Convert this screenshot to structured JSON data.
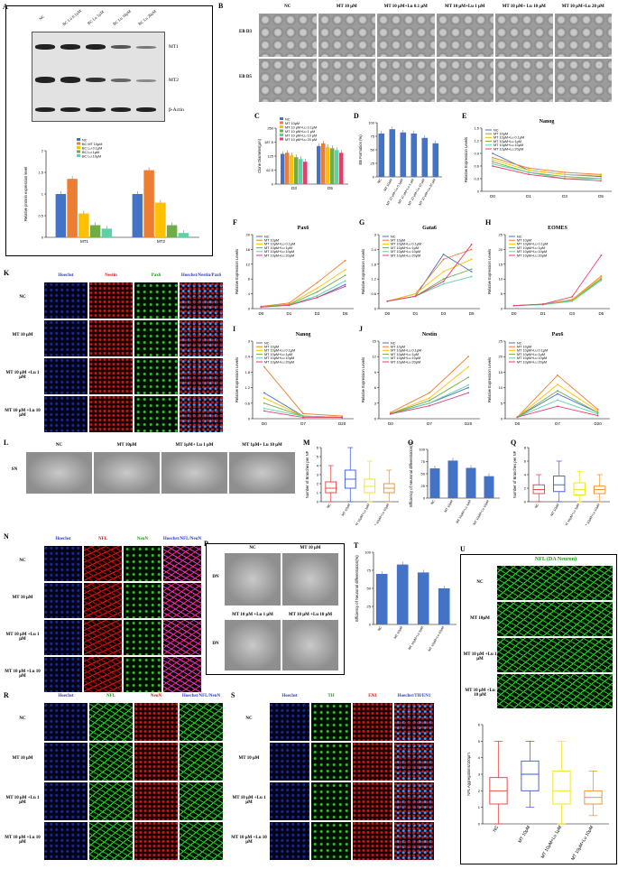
{
  "panels": {
    "A": {
      "letter": "A",
      "blot_lanes": [
        "NC",
        "BC Lu 0.1μM",
        "BC Lu 1μM",
        "BC Lu 10μM",
        "BC Lu 20μM"
      ],
      "blot_rows": [
        "MT1",
        "MT2",
        "β-Actin"
      ],
      "ylabel": "Relative protein expression level",
      "legend": [
        "NC",
        "BC MT 10μM",
        "BC Lu 0.1μM",
        "BC Lu 1μM",
        "BC Lu 10μM"
      ],
      "categories": [
        "MT1",
        "MT2"
      ]
    },
    "B": {
      "letter": "B",
      "cols": [
        "NC",
        "MT 10 μM",
        "MT 10 μM+Lu 0.1 μM",
        "MT 10 μM+Lu 1 μM",
        "MT 10 μM+ Lu 10 μM",
        "MT 10 μM+Lu 20 μM"
      ],
      "rows": [
        "EB D3",
        "EB D5"
      ]
    },
    "C": {
      "letter": "C",
      "ylabel": "Clone Diameter(μm)",
      "legend": [
        "NC",
        "MT 10μM",
        "MT 10 μM+Lu 0.1μM",
        "MT 10 μM+Lu 1 μM",
        "MT 10 μM+Lu 10 μM",
        "MT 10 μM+Lu 20 μM"
      ],
      "categories": [
        "D3",
        "D5"
      ]
    },
    "D": {
      "letter": "D",
      "ylabel": "EB Formation (%)",
      "categories": [
        "NC",
        "MT 10μM",
        "MT 10 μM+Lu 0.1μM",
        "MT 10 μM+Lu 1 μM",
        "MT 10 μM+Lu 10 μM",
        "MT 10 μM+Lu 20 μM"
      ]
    },
    "E": {
      "letter": "E",
      "title": "Nanog",
      "ylabel": "Relative Expression Levels",
      "legend": [
        "NC",
        "MT 10μM",
        "MT 10μM+Lu 0.1μM",
        "MT 10μM+Lu 1μM",
        "MT 10μM+Lu 10μM",
        "MT 10μM+Lu 20μM"
      ],
      "x": [
        "D0",
        "D1",
        "D3",
        "D5"
      ]
    },
    "F": {
      "letter": "F",
      "title": "Pax6",
      "ylabel": "Relative Expression Levels",
      "x": [
        "D0",
        "D1",
        "D3",
        "D5"
      ],
      "legend": [
        "NC",
        "MT 10μM",
        "MT 10μM+Lu 0.1μM",
        "MT 10μM+Lu 1μM",
        "MT 10μM+Lu 10μM",
        "MT 10μM+Lu 20μM"
      ]
    },
    "G": {
      "letter": "G",
      "title": "Gata6",
      "ylabel": "Relative Expression Levels",
      "x": [
        "D0",
        "D1",
        "D3",
        "D5"
      ],
      "legend": [
        "NC",
        "MT 10μM",
        "MT 10μM+Lu 0.1μM",
        "MT 10μM+Lu 1μM",
        "MT 10μM+Lu 10μM",
        "MT 10μM+Lu 20μM"
      ]
    },
    "H": {
      "letter": "H",
      "title": "EOMES",
      "ylabel": "Relative Expression Levels",
      "x": [
        "D0",
        "D1",
        "D3",
        "D5"
      ],
      "legend": [
        "NC",
        "MT 10μM",
        "MT 10μM+Lu 0.1μM",
        "MT 10μM+Lu 1μM",
        "MT 10μM+Lu 10μM",
        "MT 10μM+Lu 20μM"
      ]
    },
    "I": {
      "letter": "I",
      "title": "Nanog",
      "ylabel": "Relative Expression Levels",
      "x": [
        "D0",
        "D7",
        "D20"
      ],
      "legend": [
        "NC",
        "MT 10μM",
        "MT 10μM+Lu 0.1μM",
        "MT 10μM+Lu 1μM",
        "MT 10μM+Lu 10μM",
        "MT 10μM+Lu 20μM"
      ]
    },
    "J": {
      "letter": "J",
      "title": "Nestin",
      "ylabel": "Relative Expression Levels",
      "x": [
        "D0",
        "D7",
        "D20"
      ],
      "legend": [
        "NC",
        "MT 10μM",
        "MT 10μM+Lu 0.1μM",
        "MT 10μM+Lu 1μM",
        "MT 10μM+Lu 10μM",
        "MT 10μM+Lu 20μM"
      ]
    },
    "J2": {
      "title": "Pax6",
      "ylabel": "Relative Expression Levels",
      "x": [
        "D0",
        "D7",
        "D20"
      ],
      "legend": [
        "NC",
        "MT 10μM",
        "MT 10μM+Lu 0.1μM",
        "MT 10μM+Lu 1μM",
        "MT 10μM+Lu 10μM",
        "MT 10μM+Lu 20μM"
      ]
    },
    "K": {
      "letter": "K",
      "cols": [
        "Hoechst",
        "Nestin",
        "Pax6",
        "Hoechst/Nestin/Pax6"
      ],
      "rows": [
        "NC",
        "MT 10 μM",
        "MT 10 μM +Lu 1 μM",
        "MT 10 μM +Lu 10 μM"
      ]
    },
    "L": {
      "letter": "L",
      "cols": [
        "NC",
        "MT 10μM",
        "MT 1μM+ Lu 1 μM",
        "MT 1μM+ Lu 10 μM"
      ],
      "row": "SN"
    },
    "M": {
      "letter": "M",
      "ylabel": "Number of Branches per NF",
      "categories": [
        "NC",
        "MT 10μM",
        "MT 10μM+Lu 1μM",
        "MT 10μM+Lu 10μM"
      ]
    },
    "O": {
      "letter": "O",
      "ylabel": "Efficiency of Neuronal differentiation(%)",
      "categories": [
        "NC",
        "MT 10μM",
        "MT 10μM+Lu 1μM",
        "MT 10μM+Lu 10μM"
      ]
    },
    "Q": {
      "letter": "Q",
      "ylabel": "Number of Branches per NF",
      "categories": [
        "NC",
        "MT 10μM",
        "MT 10μM+Lu 1μM",
        "MT 10μM+Lu 10μM"
      ]
    },
    "N": {
      "letter": "N",
      "cols": [
        "Hoechst",
        "NFL",
        "NeuN",
        "Hoechst/NFL/NeuN"
      ],
      "rows": [
        "NC",
        "MT 10 μM",
        "MT 10 μM +Lu 1 μM",
        "MT 10 μM +Lu 10 μM"
      ]
    },
    "P": {
      "letter": "P",
      "cols": [
        "NC",
        "MT 10 μM"
      ],
      "cols2": [
        "MT 10 μM +Lu 1 μM",
        "MT 10 μM +Lu 10 μM"
      ],
      "row": "DN"
    },
    "T": {
      "letter": "T",
      "ylabel": "Efficiency of Neuronal differentiation(%)",
      "categories": [
        "NC",
        "MT 10μM",
        "MT 10μM+Lu 1μM",
        "MT 10μM+Lu 10μM"
      ]
    },
    "U": {
      "letter": "U",
      "title": "NFL (DA Neuron)",
      "rows": [
        "NC",
        "MT 10μM",
        "MT 10 μM +Lu 1 μM",
        "MT 10 μM +Lu 10 μM"
      ],
      "ylabel": "NFL Aggregations/100μm",
      "categories": [
        "NC",
        "MT 10μM",
        "MT 10μM+Lu 1μM",
        "MT 10μM+Lu 10μM"
      ]
    },
    "R": {
      "letter": "R",
      "cols": [
        "Hoechst",
        "NFL",
        "NeuN",
        "Hoechst/NFL/NeuN"
      ],
      "rows": [
        "NC",
        "MT 10 μM",
        "MT 10 μM +Lu 1 μM",
        "MT 10 μM +Lu 10 μM"
      ]
    },
    "S": {
      "letter": "S",
      "cols": [
        "Hoechst",
        "TH",
        "EN1",
        "Hoechst/TH/EN1"
      ],
      "rows": [
        "NC",
        "MT 10 μM",
        "MT 10 μM +Lu 1 μM",
        "MT 10 μM +Lu 10 μM"
      ]
    }
  },
  "colors": {
    "c1": "#4472c4",
    "c2": "#ed7d31",
    "c3": "#ffc000",
    "c4": "#70ad47",
    "c5": "#5bd1a8",
    "c6": "#e83e6c",
    "box_red": "#e53935",
    "box_blue": "#3a55d9",
    "box_yellow": "#f2e20b",
    "box_orange": "#f08a1c"
  },
  "chart_data": [
    {
      "panel": "A",
      "type": "bar",
      "categories": [
        "MT1",
        "MT2"
      ],
      "series": [
        {
          "name": "NC",
          "values": [
            1.0,
            1.0
          ]
        },
        {
          "name": "BC MT 10μM",
          "values": [
            1.35,
            1.55
          ]
        },
        {
          "name": "BC Lu 0.1μM",
          "values": [
            0.55,
            0.8
          ]
        },
        {
          "name": "BC Lu 1μM",
          "values": [
            0.28,
            0.28
          ]
        },
        {
          "name": "BC Lu 10μM",
          "values": [
            0.2,
            0.1
          ]
        }
      ],
      "ylim": [
        0,
        2
      ]
    },
    {
      "panel": "C",
      "type": "bar",
      "categories": [
        "D3",
        "D5"
      ],
      "series": [
        {
          "name": "NC",
          "values": [
            135,
            170
          ]
        },
        {
          "name": "MT 10μM",
          "values": [
            140,
            182
          ]
        },
        {
          "name": "MT 10 μM+Lu 0.1μM",
          "values": [
            128,
            165
          ]
        },
        {
          "name": "MT 10 μM+Lu 1 μM",
          "values": [
            120,
            160
          ]
        },
        {
          "name": "MT 10 μM+Lu 10 μM",
          "values": [
            112,
            152
          ]
        },
        {
          "name": "MT 10 μM+Lu 20 μM",
          "values": [
            100,
            140
          ]
        }
      ],
      "ylim": [
        0,
        250
      ]
    },
    {
      "panel": "D",
      "type": "bar",
      "categories": [
        "NC",
        "MT 10μM",
        "MT 10 μM+Lu 0.1μM",
        "MT 10 μM+Lu 1 μM",
        "MT 10 μM+Lu 10 μM",
        "MT 10 μM+Lu 20 μM"
      ],
      "values": [
        80,
        88,
        82,
        80,
        72,
        62
      ],
      "ylim": [
        0,
        100
      ]
    },
    {
      "panel": "E",
      "type": "line",
      "x": [
        "D0",
        "D1",
        "D3",
        "D5"
      ],
      "series": [
        {
          "name": "NC",
          "values": [
            0.9,
            0.5,
            0.4,
            0.35
          ]
        },
        {
          "name": "MT 10μM",
          "values": [
            0.8,
            0.55,
            0.45,
            0.4
          ]
        },
        {
          "name": "MT 10μM+Lu 0.1μM",
          "values": [
            0.75,
            0.5,
            0.4,
            0.38
          ]
        },
        {
          "name": "MT 10μM+Lu 1μM",
          "values": [
            0.7,
            0.45,
            0.35,
            0.3
          ]
        },
        {
          "name": "MT 10μM+Lu 10μM",
          "values": [
            0.65,
            0.45,
            0.3,
            0.3
          ]
        },
        {
          "name": "MT 10μM+Lu 20μM",
          "values": [
            0.6,
            0.4,
            0.3,
            0.25
          ]
        }
      ],
      "ylim": [
        0,
        1.5
      ]
    },
    {
      "panel": "F",
      "type": "line",
      "x": [
        "D0",
        "D1",
        "D3",
        "D5"
      ],
      "series": [
        {
          "name": "NC",
          "values": [
            0.5,
            1.0,
            3.0,
            6.5
          ]
        },
        {
          "name": "MT 10μM",
          "values": [
            0.6,
            1.5,
            7.0,
            13.0
          ]
        },
        {
          "name": "MT 10μM+Lu 0.1μM",
          "values": [
            0.5,
            1.2,
            5.5,
            10.5
          ]
        },
        {
          "name": "MT 10μM+Lu 1μM",
          "values": [
            0.5,
            1.1,
            4.5,
            9.0
          ]
        },
        {
          "name": "MT 10μM+Lu 10μM",
          "values": [
            0.4,
            1.0,
            3.5,
            7.5
          ]
        },
        {
          "name": "MT 10μM+Lu 20μM",
          "values": [
            0.4,
            0.9,
            3.0,
            6.0
          ]
        }
      ],
      "ylim": [
        0,
        20
      ]
    },
    {
      "panel": "G",
      "type": "line",
      "x": [
        "D0",
        "D1",
        "D3",
        "D5"
      ],
      "series": [
        {
          "name": "NC",
          "values": [
            0.3,
            0.5,
            2.2,
            1.5
          ]
        },
        {
          "name": "MT 10μM",
          "values": [
            0.3,
            0.6,
            2.0,
            2.4
          ]
        },
        {
          "name": "MT 10μM+Lu 0.1μM",
          "values": [
            0.3,
            0.6,
            1.5,
            2.0
          ]
        },
        {
          "name": "MT 10μM+Lu 1μM",
          "values": [
            0.3,
            0.5,
            1.2,
            1.6
          ]
        },
        {
          "name": "MT 10μM+Lu 10μM",
          "values": [
            0.3,
            0.5,
            1.0,
            1.3
          ]
        },
        {
          "name": "MT 10μM+Lu 20μM",
          "values": [
            0.3,
            0.5,
            1.1,
            2.6
          ]
        }
      ],
      "ylim": [
        0,
        3.0
      ]
    },
    {
      "panel": "H",
      "type": "line",
      "x": [
        "D0",
        "D1",
        "D3",
        "D5"
      ],
      "series": [
        {
          "name": "NC",
          "values": [
            1.0,
            1.5,
            3.0,
            10.0
          ]
        },
        {
          "name": "MT 10μM",
          "values": [
            1.0,
            1.5,
            3.0,
            11.0
          ]
        },
        {
          "name": "MT 10μM+Lu 0.1μM",
          "values": [
            1.0,
            1.5,
            2.8,
            10.5
          ]
        },
        {
          "name": "MT 10μM+Lu 1μM",
          "values": [
            1.0,
            1.4,
            2.6,
            10.0
          ]
        },
        {
          "name": "MT 10μM+Lu 10μM",
          "values": [
            1.0,
            1.3,
            2.5,
            9.5
          ]
        },
        {
          "name": "MT 10μM+Lu 20μM",
          "values": [
            1.0,
            1.5,
            4.0,
            18.0
          ]
        }
      ],
      "ylim": [
        0,
        25
      ]
    },
    {
      "panel": "I",
      "type": "line",
      "x": [
        "D0",
        "D7",
        "D20"
      ],
      "series": [
        {
          "name": "NC",
          "values": [
            1.0,
            0.1,
            0.05
          ]
        },
        {
          "name": "MT 10μM",
          "values": [
            2.0,
            0.2,
            0.1
          ]
        },
        {
          "name": "MT 10μM+Lu 0.1μM",
          "values": [
            0.8,
            0.1,
            0.05
          ]
        },
        {
          "name": "MT 10μM+Lu 1μM",
          "values": [
            0.6,
            0.1,
            0.05
          ]
        },
        {
          "name": "MT 10μM+Lu 10μM",
          "values": [
            0.4,
            0.1,
            0.05
          ]
        },
        {
          "name": "MT 10μM+Lu 20μM",
          "values": [
            0.3,
            0.05,
            0.05
          ]
        }
      ],
      "ylim": [
        0,
        3.0
      ]
    },
    {
      "panel": "J",
      "type": "line",
      "x": [
        "D0",
        "D7",
        "D20"
      ],
      "series": [
        {
          "name": "NC",
          "values": [
            1.0,
            3.0,
            6.0
          ]
        },
        {
          "name": "MT 10μM",
          "values": [
            1.2,
            5.0,
            12.0
          ]
        },
        {
          "name": "MT 10μM+Lu 0.1μM",
          "values": [
            1.0,
            4.0,
            10.0
          ]
        },
        {
          "name": "MT 10μM+Lu 1μM",
          "values": [
            1.0,
            3.5,
            8.0
          ]
        },
        {
          "name": "MT 10μM+Lu 10μM",
          "values": [
            0.9,
            3.0,
            6.5
          ]
        },
        {
          "name": "MT 10μM+Lu 20μM",
          "values": [
            0.9,
            2.5,
            5.0
          ]
        }
      ],
      "ylim": [
        0,
        15
      ]
    },
    {
      "panel": "J2",
      "type": "line",
      "x": [
        "D0",
        "D7",
        "D20"
      ],
      "series": [
        {
          "name": "NC",
          "values": [
            0.5,
            8.0,
            2.0
          ]
        },
        {
          "name": "MT 10μM",
          "values": [
            0.5,
            14.0,
            3.0
          ]
        },
        {
          "name": "MT 10μM+Lu 0.1μM",
          "values": [
            0.5,
            11.0,
            2.5
          ]
        },
        {
          "name": "MT 10μM+Lu 1μM",
          "values": [
            0.5,
            9.0,
            2.0
          ]
        },
        {
          "name": "MT 10μM+Lu 10μM",
          "values": [
            0.5,
            6.0,
            1.5
          ]
        },
        {
          "name": "MT 10μM+Lu 20μM",
          "values": [
            0.5,
            4.0,
            1.0
          ]
        }
      ],
      "ylim": [
        0,
        25
      ]
    },
    {
      "panel": "M",
      "type": "box",
      "categories": [
        "NC",
        "MT 10μM",
        "MT 10μM+Lu 1μM",
        "MT 10μM+Lu 10μM"
      ],
      "boxes": [
        [
          0,
          1,
          1.5,
          2.2,
          4
        ],
        [
          0,
          1.5,
          2.5,
          3.5,
          6
        ],
        [
          0,
          1,
          1.7,
          2.5,
          4.5
        ],
        [
          0,
          1,
          1.5,
          2,
          3.5
        ]
      ],
      "ylim": [
        0,
        6
      ]
    },
    {
      "panel": "O",
      "type": "bar",
      "categories": [
        "NC",
        "MT 10μM",
        "MT 10μM+Lu 1μM",
        "MT 10μM+Lu 10μM"
      ],
      "values": [
        61,
        77,
        62,
        45
      ],
      "ylim": [
        0,
        100
      ]
    },
    {
      "panel": "Q",
      "type": "box",
      "categories": [
        "NC",
        "MT 10μM",
        "MT 10μM+Lu 1μM",
        "MT 10μM+Lu 10μM"
      ],
      "boxes": [
        [
          0,
          1.2,
          1.8,
          2.5,
          4
        ],
        [
          0,
          1.5,
          2.5,
          3.8,
          6
        ],
        [
          0,
          1,
          1.8,
          2.8,
          4.5
        ],
        [
          0,
          1.2,
          1.8,
          2.3,
          4
        ]
      ],
      "ylim": [
        0,
        8
      ]
    },
    {
      "panel": "T",
      "type": "bar",
      "categories": [
        "NC",
        "MT 10μM",
        "MT 10μM+Lu 1μM",
        "MT 10μM+Lu 10μM"
      ],
      "values": [
        70,
        83,
        72,
        50
      ],
      "ylim": [
        0,
        100
      ]
    },
    {
      "panel": "U",
      "type": "box",
      "categories": [
        "NC",
        "MT 10μM",
        "MT 10μM+Lu 1μM",
        "MT 10μM+Lu 10μM"
      ],
      "boxes": [
        [
          0,
          1.2,
          2,
          2.8,
          5
        ],
        [
          1,
          2,
          3,
          3.8,
          5
        ],
        [
          0,
          1.2,
          2,
          3.2,
          5
        ],
        [
          0.5,
          1.2,
          1.6,
          2,
          3.2
        ]
      ],
      "ylim": [
        0,
        6
      ]
    }
  ]
}
